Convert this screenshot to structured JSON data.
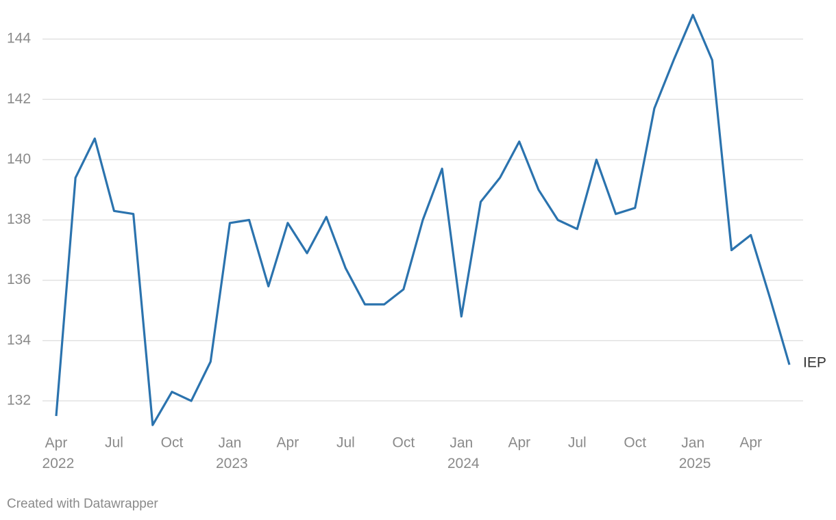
{
  "chart_data": {
    "type": "line",
    "categories": [
      "Apr 2022",
      null,
      null,
      "Jul",
      null,
      null,
      "Oct",
      null,
      null,
      "Jan 2023",
      null,
      null,
      "Apr",
      null,
      null,
      "Jul",
      null,
      null,
      "Oct",
      null,
      null,
      "Jan 2024",
      null,
      null,
      "Apr",
      null,
      null,
      "Jul",
      null,
      null,
      "Oct",
      null,
      null,
      "Jan 2025",
      null,
      null,
      "Apr",
      null,
      null
    ],
    "series": [
      {
        "name": "IEP",
        "color": "#2b73ae",
        "values": [
          131.5,
          139.4,
          140.7,
          138.3,
          138.2,
          131.2,
          132.3,
          132.0,
          133.3,
          137.9,
          138.0,
          135.8,
          137.9,
          136.9,
          138.1,
          136.4,
          135.2,
          135.2,
          135.7,
          138.0,
          139.7,
          134.8,
          138.6,
          139.4,
          140.6,
          139.0,
          138.0,
          137.7,
          140.0,
          138.2,
          138.4,
          141.7,
          143.3,
          144.8,
          143.3,
          137.0,
          137.5,
          135.4,
          133.2
        ]
      }
    ],
    "ylim": [
      131,
      145
    ],
    "yticks": [
      132,
      134,
      136,
      138,
      140,
      142,
      144
    ],
    "grid": true,
    "footer": "Created with Datawrapper"
  }
}
